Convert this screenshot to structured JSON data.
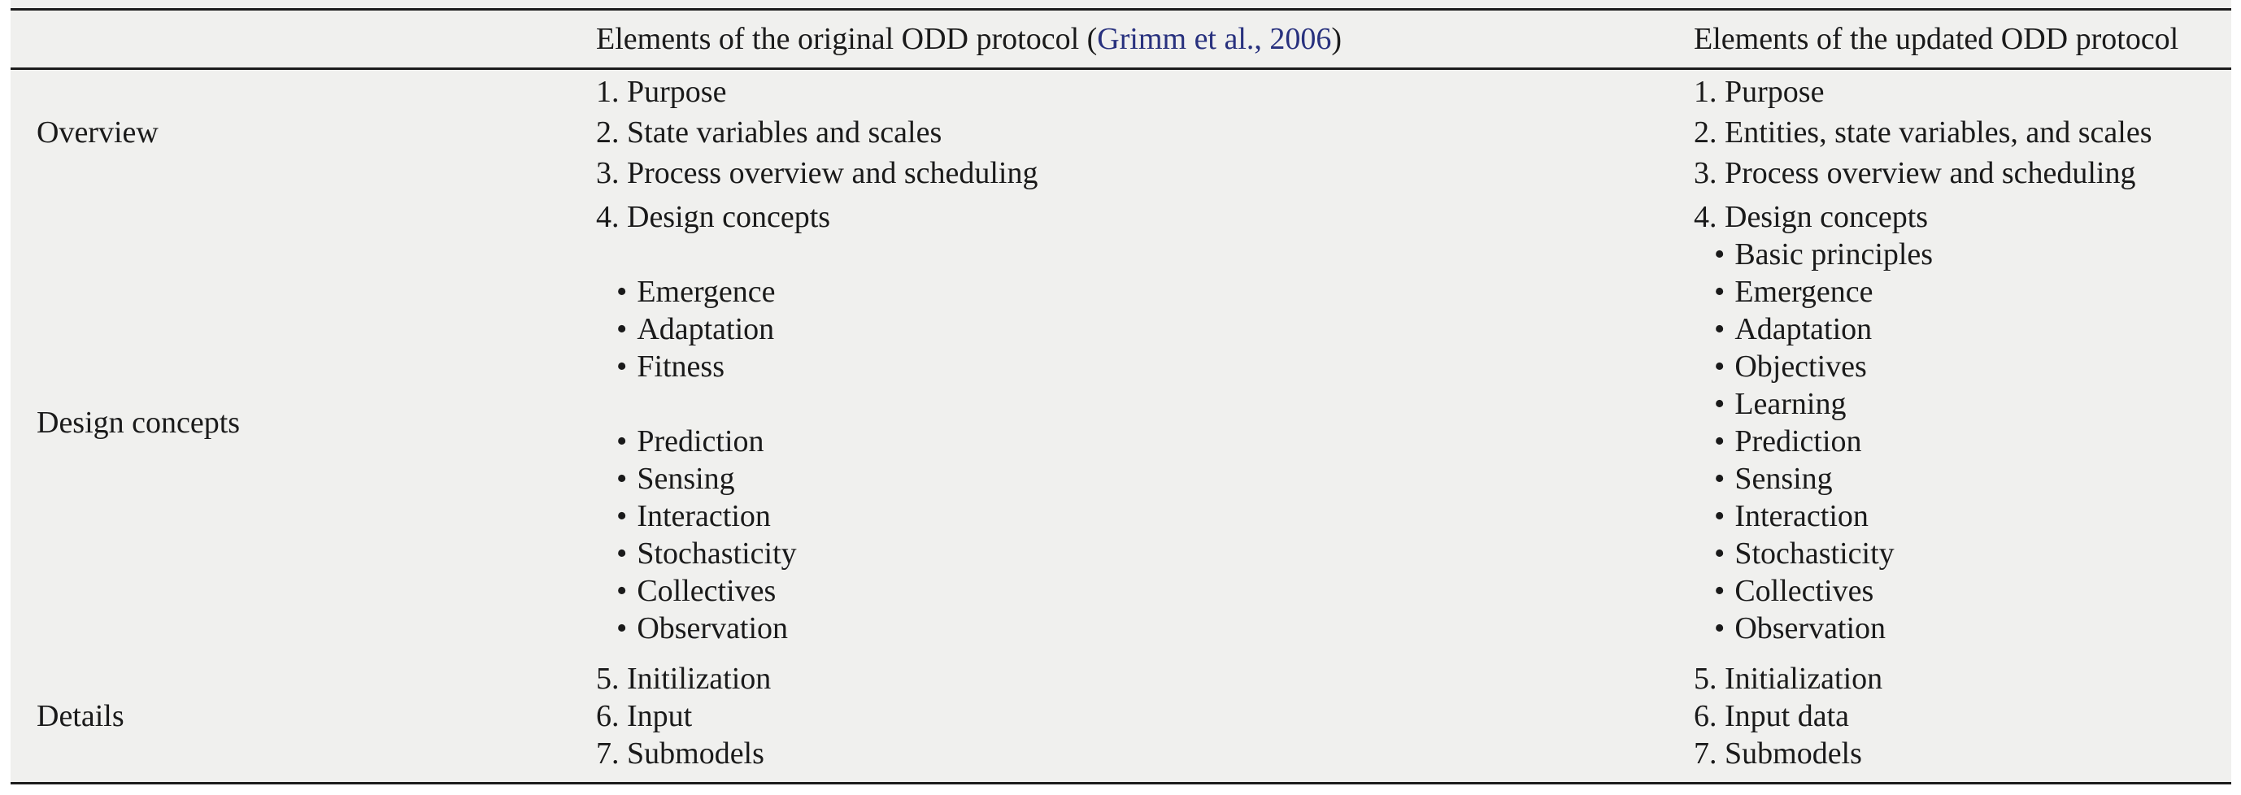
{
  "colors": {
    "table_bg": "#f0f0ee",
    "text": "#1a1a1a",
    "rule": "#1c1c1c",
    "link": "#28317e",
    "page_bg": "#ffffff"
  },
  "glyphs": {
    "bullet": "•"
  },
  "header": {
    "col2": {
      "prefix": "Elements of the original ODD protocol (",
      "link": "Grimm et al., 2006",
      "suffix": ")"
    },
    "col3": "Elements of the updated ODD protocol"
  },
  "rows": {
    "overview": {
      "label": "Overview",
      "original": [
        "1. Purpose",
        "2. State variables and scales",
        "3. Process overview and scheduling"
      ],
      "updated": [
        "1. Purpose",
        "2. Entities, state variables, and scales",
        "3. Process overview and scheduling"
      ]
    },
    "design": {
      "label": "Design concepts",
      "original": {
        "title": "4. Design concepts",
        "group1": [
          "Emergence",
          "Adaptation",
          "Fitness"
        ],
        "group2": [
          "Prediction",
          "Sensing",
          "Interaction",
          "Stochasticity",
          "Collectives",
          "Observation"
        ]
      },
      "updated": {
        "title": "4. Design concepts",
        "bullets": [
          "Basic principles",
          "Emergence",
          "Adaptation",
          "Objectives",
          "Learning",
          "Prediction",
          "Sensing",
          "Interaction",
          "Stochasticity",
          "Collectives",
          "Observation"
        ]
      }
    },
    "details": {
      "label": "Details",
      "original": [
        "5. Initilization",
        "6. Input",
        "7. Submodels"
      ],
      "updated": [
        "5. Initialization",
        "6. Input data",
        "7. Submodels"
      ]
    }
  }
}
